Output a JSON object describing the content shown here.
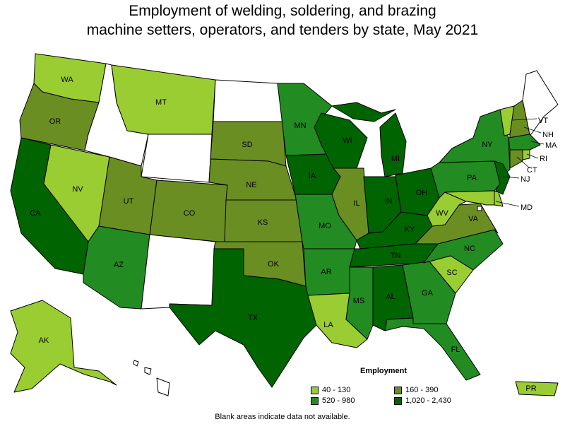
{
  "title_lines": [
    "Employment of welding, soldering, and brazing",
    "machine setters, operators, and tenders by state, May 2021"
  ],
  "legend": {
    "title": "Employment",
    "items": [
      {
        "label": "40 - 130",
        "color": "#9acd32"
      },
      {
        "label": "160 - 390",
        "color": "#6b8e23"
      },
      {
        "label": "520 - 980",
        "color": "#228b22"
      },
      {
        "label": "1,020 - 2,430",
        "color": "#006400"
      }
    ]
  },
  "no_data_color": "#ffffff",
  "footnote": "Blank areas indicate data not available.",
  "state_classes": {
    "WA": 0,
    "OR": 1,
    "CA": 3,
    "NV": 0,
    "ID": null,
    "MT": 0,
    "WY": null,
    "UT": 1,
    "AZ": 2,
    "CO": 1,
    "NM": null,
    "ND": null,
    "SD": 1,
    "NE": 1,
    "KS": 1,
    "OK": 1,
    "TX": 3,
    "MN": 2,
    "IA": 3,
    "MO": 2,
    "AR": 2,
    "LA": 0,
    "WI": 3,
    "IL": 1,
    "MS": 2,
    "MI": 3,
    "IN": 3,
    "KY": 3,
    "TN": 3,
    "AL": 3,
    "OH": 3,
    "GA": 2,
    "FL": 2,
    "SC": 0,
    "NC": 2,
    "VA": 1,
    "WV": 0,
    "PA": 2,
    "NY": 2,
    "ME": null,
    "VT": 0,
    "NH": 1,
    "MA": 2,
    "CT": 1,
    "RI": 0,
    "NJ": 3,
    "DE": 0,
    "MD": 0,
    "DC": null,
    "AK": 0,
    "HI": null,
    "PR": 0
  },
  "labels": {
    "WA": "WA",
    "OR": "OR",
    "CA": "CA",
    "NV": "NV",
    "MT": "MT",
    "UT": "UT",
    "AZ": "AZ",
    "CO": "CO",
    "SD": "SD",
    "NE": "NE",
    "KS": "KS",
    "OK": "OK",
    "TX": "TX",
    "MN": "MN",
    "IA": "IA",
    "MO": "MO",
    "AR": "AR",
    "LA": "LA",
    "WI": "WI",
    "IL": "IL",
    "MS": "MS",
    "MI": "MI",
    "IN": "IN",
    "KY": "KY",
    "TN": "TN",
    "AL": "AL",
    "OH": "OH",
    "GA": "GA",
    "FL": "FL",
    "SC": "SC",
    "NC": "NC",
    "VA": "VA",
    "WV": "WV",
    "PA": "PA",
    "NY": "NY",
    "VT": "VT",
    "NH": "NH",
    "MA": "MA",
    "CT": "CT",
    "RI": "RI",
    "NJ": "NJ",
    "MD": "MD",
    "AK": "AK",
    "PR": "PR"
  }
}
